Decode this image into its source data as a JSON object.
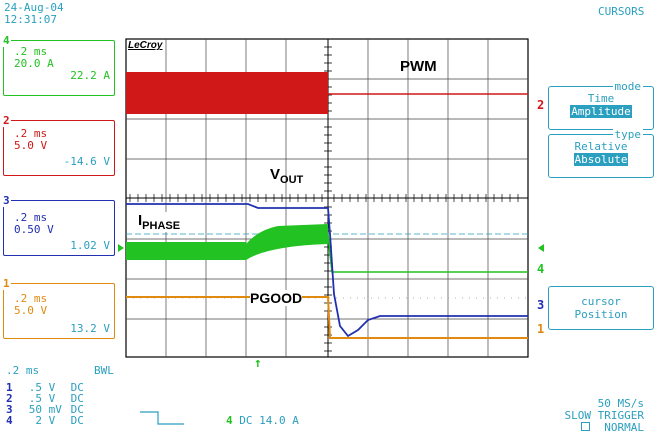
{
  "header": {
    "date": "24-Aug-04",
    "time": "12:31:07",
    "mode_title": "CURSORS"
  },
  "channels": [
    {
      "num": "4",
      "timebase": ".2 ms",
      "vdiv": "20.0 A",
      "reading": "22.2 A",
      "color": "#22c222"
    },
    {
      "num": "2",
      "timebase": ".2 ms",
      "vdiv": "5.0 V",
      "reading": "-14.6 V",
      "color": "#d01818"
    },
    {
      "num": "3",
      "timebase": ".2 ms",
      "vdiv": "0.50 V",
      "reading": "1.02 V",
      "color": "#2030b0"
    },
    {
      "num": "1",
      "timebase": ".2 ms",
      "vdiv": "5.0 V",
      "reading": "13.2 V",
      "color": "#e08a10"
    }
  ],
  "scope": {
    "brand": "LeCroy"
  },
  "traces": {
    "pwm": "PWM",
    "vout_main": "V",
    "vout_sub": "OUT",
    "iphase_main": "I",
    "iphase_sub": "PHASE",
    "pgood": "PGOOD"
  },
  "menus": {
    "mode": {
      "title": "mode",
      "options": [
        "Time",
        "Amplitude"
      ],
      "selected": "Amplitude"
    },
    "type": {
      "title": "type",
      "options": [
        "Relative",
        "Absolute"
      ],
      "selected": "Absolute"
    },
    "cursor": {
      "line1": "cursor",
      "line2": "Position"
    }
  },
  "bottom": {
    "timebase": ".2 ms",
    "bwl": "BWL",
    "channel_settings": [
      {
        "num": "1",
        "scale": ".5",
        "unit": "V",
        "coupling": "DC"
      },
      {
        "num": "2",
        "scale": ".5",
        "unit": "V",
        "coupling": "DC"
      },
      {
        "num": "3",
        "scale": "50",
        "unit": "mV",
        "coupling": "DC"
      },
      {
        "num": "4",
        "scale": "2",
        "unit": "V",
        "coupling": "DC"
      }
    ],
    "trigger_source": "4",
    "trigger_level": "DC 14.0 A",
    "sample_rate": "50 MS/s",
    "trigger_mode": "SLOW TRIGGER",
    "trigger_state": "NORMAL"
  },
  "colors": {
    "ch1": "#e08a10",
    "ch2": "#d01818",
    "ch3": "#2030b0",
    "ch4": "#22c222",
    "ui": "#2a9fbf"
  }
}
